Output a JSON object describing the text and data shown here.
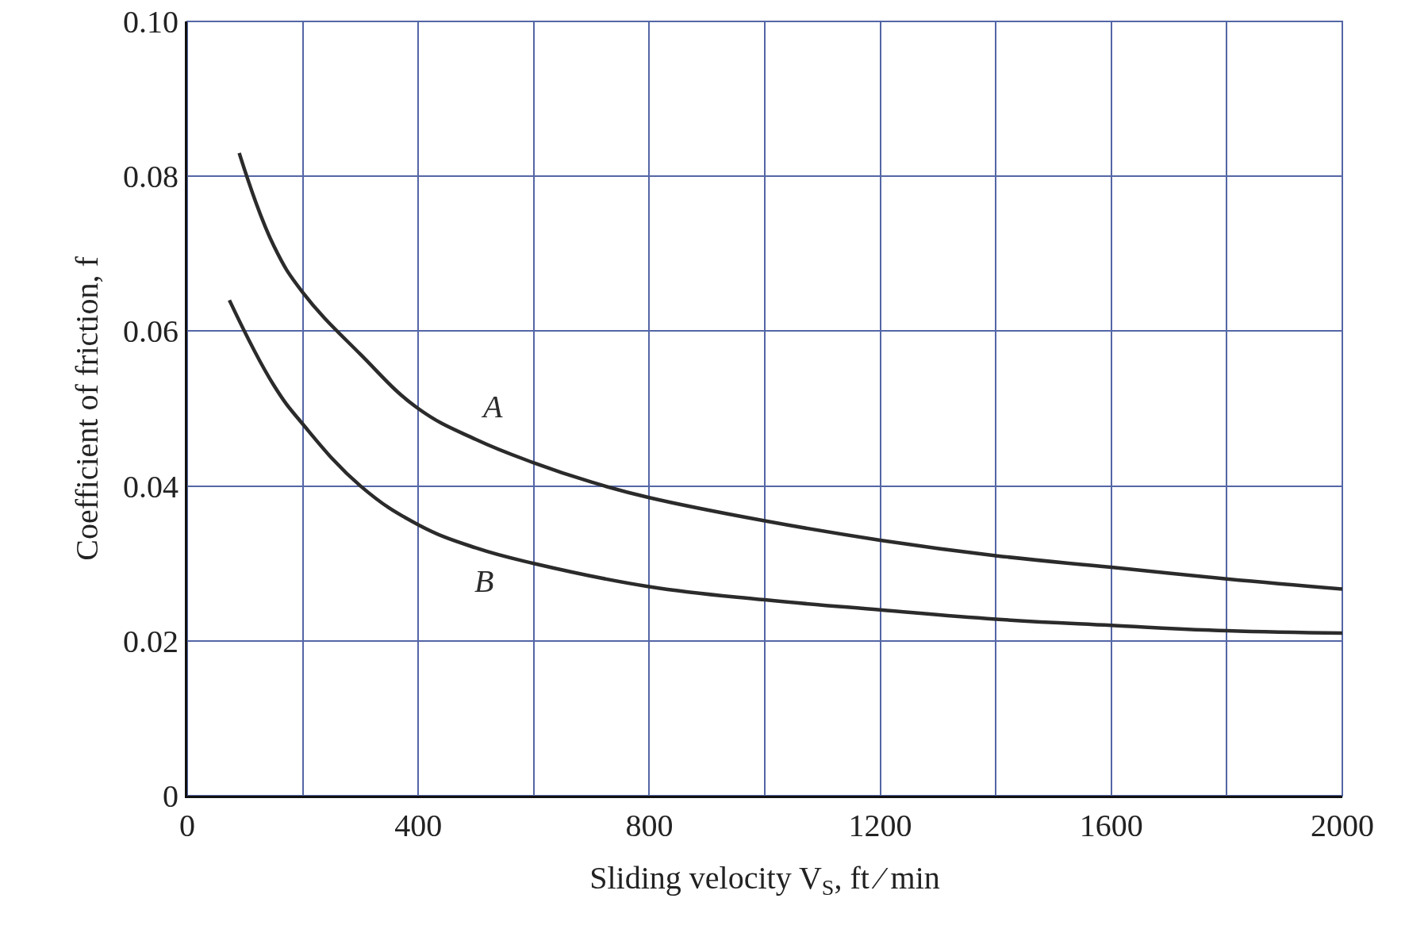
{
  "chart_data": {
    "type": "line",
    "xlabel": "Sliding velocity V$_{S}$, ft ⁄ min",
    "ylabel": "Coefficient of friction, f",
    "xlim": [
      0,
      2000
    ],
    "ylim": [
      0,
      0.1
    ],
    "xticks": [
      0,
      {
        "value": 200,
        "label": null
      },
      400,
      {
        "value": 600,
        "label": null
      },
      800,
      {
        "value": 1000,
        "label": null
      },
      1200,
      {
        "value": 1400,
        "label": null
      },
      1600,
      {
        "value": 1800,
        "label": null
      },
      2000
    ],
    "yticks": [
      0,
      0.02,
      0.04,
      0.06,
      0.08,
      {
        "value": 0.1,
        "label": "0.10"
      }
    ],
    "grid": true,
    "marker": "none",
    "line_style": "solid",
    "series": [
      {
        "name": "A",
        "color": "#2b2b2b",
        "x": [
          90,
          150,
          200,
          300,
          400,
          500,
          600,
          700,
          800,
          1000,
          1200,
          1400,
          1600,
          1800,
          2000
        ],
        "values": [
          0.083,
          0.071,
          0.065,
          0.057,
          0.05,
          0.046,
          0.043,
          0.0405,
          0.0385,
          0.0355,
          0.033,
          0.031,
          0.0295,
          0.028,
          0.0267
        ]
      },
      {
        "name": "B",
        "color": "#2b2b2b",
        "x": [
          73,
          150,
          200,
          300,
          400,
          500,
          600,
          800,
          1000,
          1200,
          1400,
          1600,
          1800,
          2000
        ],
        "values": [
          0.064,
          0.053,
          0.048,
          0.04,
          0.035,
          0.032,
          0.03,
          0.027,
          0.0253,
          0.024,
          0.0228,
          0.022,
          0.0213,
          0.021
        ]
      }
    ]
  }
}
